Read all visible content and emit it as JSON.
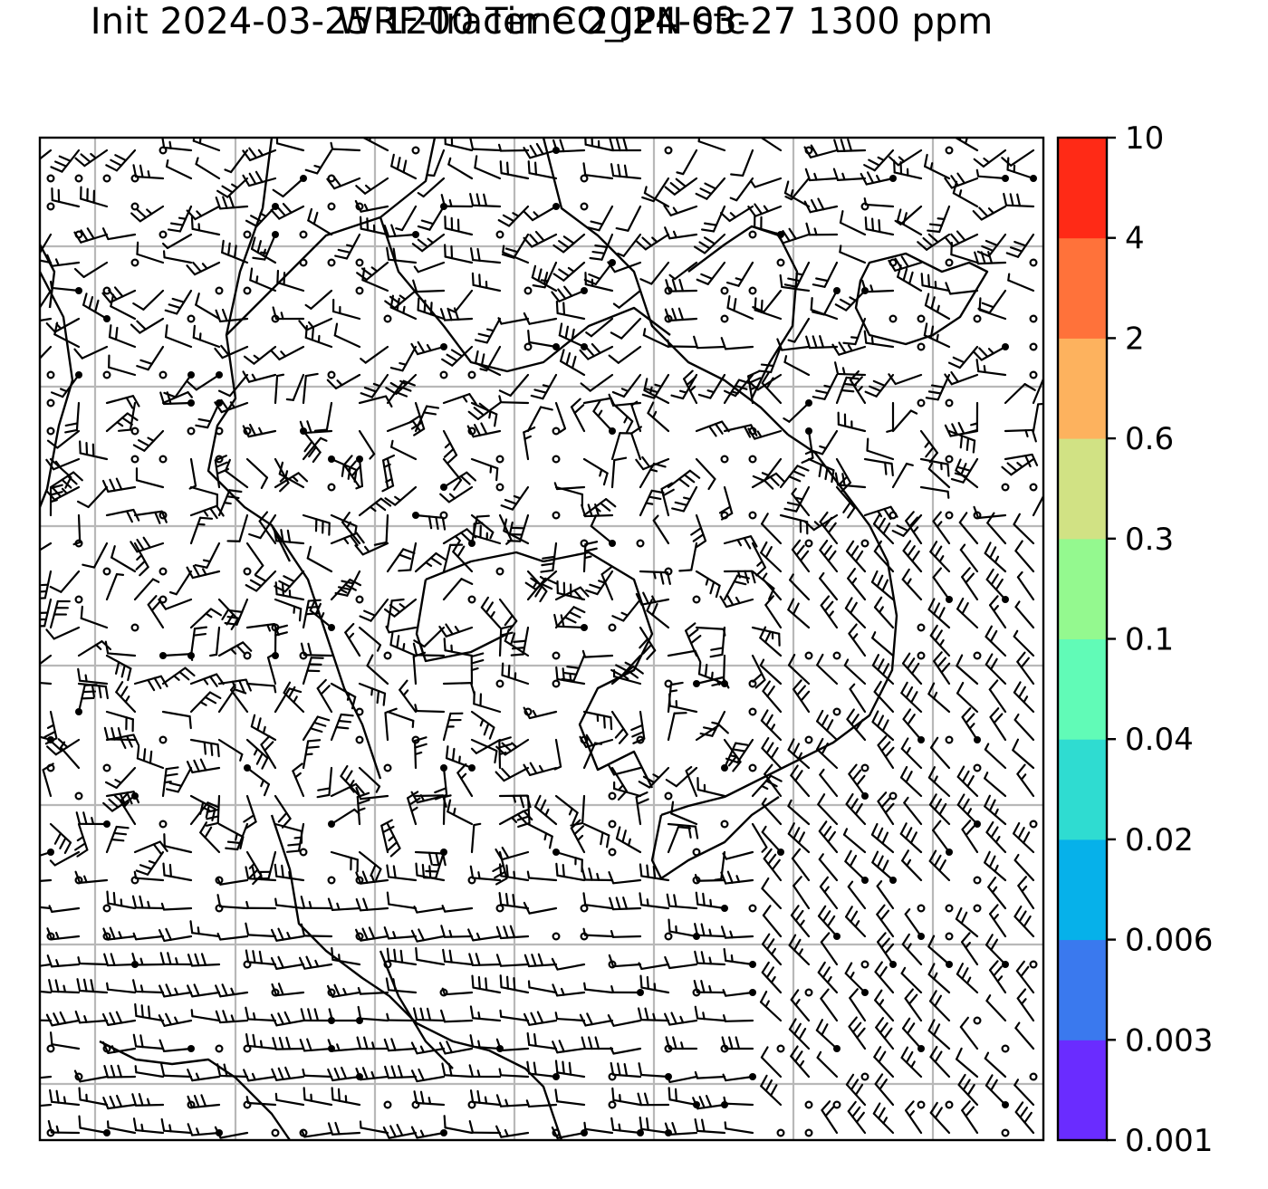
{
  "title_line1": "WRF-Tracer CO_JPN sfc",
  "title_line2": "Init 2024-03-25 1200 Time 2024-03-27 1300 ppm",
  "colorbar": {
    "ticks": [
      "0.001",
      "0.003",
      "0.006",
      "0.02",
      "0.04",
      "0.1",
      "0.3",
      "0.6",
      "2",
      "4",
      "10"
    ],
    "colors": [
      "#6a2cff",
      "#3a79ee",
      "#06b1ea",
      "#2fdcd1",
      "#61fbb7",
      "#94f98f",
      "#d1e284",
      "#fdb25e",
      "#ff723a",
      "#ff2a16"
    ]
  },
  "map": {
    "gridlines": "on",
    "grid_color": "#b8b8b8",
    "content": "wind barbs with coastlines"
  }
}
